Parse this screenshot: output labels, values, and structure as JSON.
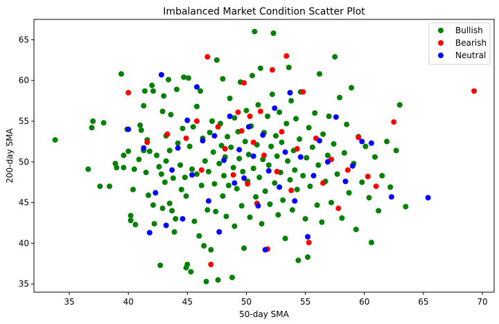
{
  "chart_data": {
    "type": "scatter",
    "title": "Imbalanced Market Condition Scatter Plot",
    "xlabel": "50-day SMA",
    "ylabel": "200-day SMA",
    "xlim": [
      32,
      71
    ],
    "ylim": [
      34,
      67.5
    ],
    "xticks": [
      35,
      40,
      45,
      50,
      55,
      60,
      65,
      70
    ],
    "yticks": [
      35,
      40,
      45,
      50,
      55,
      60,
      65
    ],
    "grid": false,
    "legend_position": "top-right",
    "series": [
      {
        "name": "Bullish",
        "color": "#008000",
        "points": [
          [
            33.8,
            52.7
          ],
          [
            36.6,
            49.1
          ],
          [
            36.9,
            54.2
          ],
          [
            37.0,
            55.0
          ],
          [
            37.6,
            47.0
          ],
          [
            37.9,
            54.8
          ],
          [
            38.4,
            47.0
          ],
          [
            38.9,
            49.8
          ],
          [
            39.0,
            49.3
          ],
          [
            39.4,
            60.8
          ],
          [
            39.6,
            50.8
          ],
          [
            39.6,
            49.3
          ],
          [
            39.9,
            54.0
          ],
          [
            40.0,
            51.3
          ],
          [
            40.2,
            42.8
          ],
          [
            40.2,
            43.4
          ],
          [
            40.4,
            46.6
          ],
          [
            40.5,
            49.1
          ],
          [
            40.6,
            42.3
          ],
          [
            40.9,
            50.3
          ],
          [
            41.0,
            54.5
          ],
          [
            41.1,
            53.9
          ],
          [
            41.3,
            51.4
          ],
          [
            41.3,
            56.9
          ],
          [
            41.4,
            58.7
          ],
          [
            41.5,
            48.7
          ],
          [
            41.6,
            52.7
          ],
          [
            41.7,
            45.9
          ],
          [
            41.8,
            51.3
          ],
          [
            42.0,
            59.4
          ],
          [
            42.1,
            58.7
          ],
          [
            42.1,
            44.7
          ],
          [
            42.2,
            42.4
          ],
          [
            42.4,
            50.8
          ],
          [
            42.6,
            49.4
          ],
          [
            42.7,
            37.3
          ],
          [
            42.8,
            48.5
          ],
          [
            42.9,
            44.3
          ],
          [
            42.9,
            56.2
          ],
          [
            43.0,
            58.1
          ],
          [
            43.1,
            47.5
          ],
          [
            43.2,
            50.1
          ],
          [
            43.2,
            53.2
          ],
          [
            43.4,
            60.1
          ],
          [
            43.5,
            44.9
          ],
          [
            43.5,
            51.4
          ],
          [
            43.6,
            55.8
          ],
          [
            43.7,
            44.0
          ],
          [
            43.8,
            48.0
          ],
          [
            43.9,
            41.4
          ],
          [
            44.0,
            43.0
          ],
          [
            44.1,
            58.9
          ],
          [
            44.2,
            52.3
          ],
          [
            44.4,
            49.6
          ],
          [
            44.5,
            46.6
          ],
          [
            44.6,
            54.1
          ],
          [
            44.7,
            60.4
          ],
          [
            44.8,
            48.1
          ],
          [
            44.9,
            45.8
          ],
          [
            44.9,
            37.0
          ],
          [
            45.0,
            37.4
          ],
          [
            45.1,
            60.3
          ],
          [
            45.2,
            51.9
          ],
          [
            45.3,
            36.5
          ],
          [
            45.4,
            49.1
          ],
          [
            45.5,
            54.3
          ],
          [
            45.6,
            42.7
          ],
          [
            45.8,
            48.5
          ],
          [
            45.8,
            56.8
          ],
          [
            46.0,
            40.9
          ],
          [
            46.1,
            58.7
          ],
          [
            46.2,
            47.1
          ],
          [
            46.3,
            52.9
          ],
          [
            46.4,
            39.7
          ],
          [
            46.5,
            50.1
          ],
          [
            46.6,
            35.3
          ],
          [
            46.7,
            44.1
          ],
          [
            46.8,
            48.8
          ],
          [
            46.9,
            53.6
          ],
          [
            47.0,
            39.2
          ],
          [
            47.1,
            55.0
          ],
          [
            47.2,
            51.2
          ],
          [
            47.3,
            47.3
          ],
          [
            47.4,
            43.9
          ],
          [
            47.5,
            62.5
          ],
          [
            47.6,
            35.5
          ],
          [
            47.7,
            49.8
          ],
          [
            47.8,
            54.7
          ],
          [
            47.9,
            52.0
          ],
          [
            48.0,
            45.8
          ],
          [
            48.0,
            60.2
          ],
          [
            48.1,
            48.3
          ],
          [
            48.2,
            50.6
          ],
          [
            48.3,
            43.3
          ],
          [
            48.4,
            53.1
          ],
          [
            48.5,
            47.1
          ],
          [
            48.6,
            57.8
          ],
          [
            48.7,
            51.8
          ],
          [
            48.8,
            35.8
          ],
          [
            48.9,
            49.3
          ],
          [
            49.0,
            42.1
          ],
          [
            49.0,
            55.4
          ],
          [
            49.2,
            46.7
          ],
          [
            49.3,
            53.7
          ],
          [
            49.4,
            50.4
          ],
          [
            49.5,
            59.8
          ],
          [
            49.6,
            44.6
          ],
          [
            49.7,
            48.8
          ],
          [
            49.8,
            39.4
          ],
          [
            49.9,
            52.5
          ],
          [
            50.0,
            56.3
          ],
          [
            50.1,
            47.6
          ],
          [
            50.2,
            50.9
          ],
          [
            50.3,
            43.2
          ],
          [
            50.4,
            54.4
          ],
          [
            50.5,
            60.6
          ],
          [
            50.6,
            49.2
          ],
          [
            50.7,
            66.0
          ],
          [
            50.8,
            45.7
          ],
          [
            50.9,
            52.1
          ],
          [
            51.0,
            57.0
          ],
          [
            51.1,
            48.1
          ],
          [
            51.2,
            61.5
          ],
          [
            51.3,
            42.4
          ],
          [
            51.4,
            50.3
          ],
          [
            51.5,
            53.6
          ],
          [
            51.6,
            46.4
          ],
          [
            51.8,
            55.6
          ],
          [
            51.9,
            49.6
          ],
          [
            52.0,
            44.8
          ],
          [
            52.1,
            51.9
          ],
          [
            52.2,
            58.3
          ],
          [
            52.3,
            65.8
          ],
          [
            52.4,
            47.4
          ],
          [
            52.5,
            53.2
          ],
          [
            52.6,
            50.7
          ],
          [
            52.7,
            43.5
          ],
          [
            52.8,
            56.1
          ],
          [
            52.9,
            48.7
          ],
          [
            53.0,
            52.4
          ],
          [
            53.1,
            45.3
          ],
          [
            53.3,
            40.6
          ],
          [
            53.4,
            54.7
          ],
          [
            53.5,
            50.1
          ],
          [
            53.6,
            61.6
          ],
          [
            53.7,
            47.8
          ],
          [
            53.8,
            57.5
          ],
          [
            53.9,
            44.1
          ],
          [
            54.0,
            51.4
          ],
          [
            54.1,
            49.0
          ],
          [
            54.2,
            55.3
          ],
          [
            54.3,
            46.6
          ],
          [
            54.4,
            37.9
          ],
          [
            54.5,
            52.8
          ],
          [
            54.6,
            58.6
          ],
          [
            54.8,
            48.3
          ],
          [
            55.0,
            43.0
          ],
          [
            55.1,
            50.5
          ],
          [
            55.2,
            38.3
          ],
          [
            55.3,
            54.2
          ],
          [
            55.4,
            47.0
          ],
          [
            55.6,
            51.8
          ],
          [
            55.8,
            56.0
          ],
          [
            56.0,
            44.7
          ],
          [
            56.1,
            49.6
          ],
          [
            56.2,
            60.8
          ],
          [
            56.4,
            42.6
          ],
          [
            56.5,
            53.4
          ],
          [
            56.7,
            47.6
          ],
          [
            56.9,
            50.8
          ],
          [
            57.0,
            55.6
          ],
          [
            57.2,
            45.0
          ],
          [
            57.4,
            52.2
          ],
          [
            57.5,
            62.9
          ],
          [
            57.7,
            48.5
          ],
          [
            57.9,
            57.9
          ],
          [
            58.1,
            43.1
          ],
          [
            58.3,
            51.1
          ],
          [
            58.5,
            54.6
          ],
          [
            58.7,
            46.2
          ],
          [
            58.9,
            59.1
          ],
          [
            59.1,
            49.8
          ],
          [
            59.3,
            41.7
          ],
          [
            59.5,
            53.1
          ],
          [
            59.8,
            47.5
          ],
          [
            60.1,
            51.9
          ],
          [
            60.4,
            45.6
          ],
          [
            60.6,
            40.1
          ],
          [
            60.9,
            50.6
          ],
          [
            61.2,
            44.0
          ],
          [
            61.5,
            48.3
          ],
          [
            61.9,
            52.5
          ],
          [
            62.2,
            46.9
          ],
          [
            62.7,
            51.4
          ],
          [
            63.0,
            57.0
          ],
          [
            63.5,
            44.5
          ]
        ]
      },
      {
        "name": "Bearish",
        "color": "#ff0000",
        "points": [
          [
            40.0,
            58.5
          ],
          [
            41.6,
            52.4
          ],
          [
            43.3,
            53.4
          ],
          [
            44.9,
            52.9
          ],
          [
            45.8,
            55.0
          ],
          [
            46.2,
            49.0
          ],
          [
            46.7,
            62.9
          ],
          [
            47.0,
            37.4
          ],
          [
            47.6,
            54.3
          ],
          [
            48.2,
            51.6
          ],
          [
            48.9,
            48.4
          ],
          [
            49.3,
            56.1
          ],
          [
            49.6,
            53.8
          ],
          [
            49.8,
            59.7
          ],
          [
            50.1,
            47.3
          ],
          [
            50.3,
            55.6
          ],
          [
            50.6,
            52.4
          ],
          [
            50.9,
            44.9
          ],
          [
            51.2,
            56.2
          ],
          [
            51.5,
            50.8
          ],
          [
            51.8,
            39.3
          ],
          [
            52.2,
            61.3
          ],
          [
            52.6,
            48.8
          ],
          [
            53.0,
            53.7
          ],
          [
            53.4,
            63.0
          ],
          [
            53.8,
            46.5
          ],
          [
            54.3,
            51.6
          ],
          [
            54.8,
            58.6
          ],
          [
            55.3,
            40.1
          ],
          [
            55.9,
            52.9
          ],
          [
            56.5,
            47.4
          ],
          [
            57.2,
            50.3
          ],
          [
            57.8,
            44.3
          ],
          [
            58.6,
            49.0
          ],
          [
            59.5,
            53.0
          ],
          [
            60.3,
            48.2
          ],
          [
            61.0,
            47.0
          ],
          [
            62.5,
            54.9
          ],
          [
            69.3,
            58.7
          ]
        ]
      },
      {
        "name": "Neutral",
        "color": "#0000ff",
        "points": [
          [
            40.0,
            54.0
          ],
          [
            41.3,
            51.7
          ],
          [
            41.8,
            41.3
          ],
          [
            42.3,
            46.2
          ],
          [
            42.8,
            60.7
          ],
          [
            43.2,
            42.2
          ],
          [
            43.7,
            49.0
          ],
          [
            44.2,
            51.7
          ],
          [
            44.6,
            43.0
          ],
          [
            45.0,
            55.1
          ],
          [
            45.4,
            48.4
          ],
          [
            45.8,
            59.2
          ],
          [
            46.3,
            52.6
          ],
          [
            46.8,
            45.2
          ],
          [
            47.3,
            53.2
          ],
          [
            47.7,
            41.4
          ],
          [
            48.1,
            50.2
          ],
          [
            48.6,
            55.6
          ],
          [
            49.0,
            47.4
          ],
          [
            49.4,
            51.5
          ],
          [
            49.8,
            48.0
          ],
          [
            50.2,
            54.3
          ],
          [
            50.6,
            50.7
          ],
          [
            51.0,
            44.6
          ],
          [
            51.4,
            53.3
          ],
          [
            51.6,
            39.2
          ],
          [
            51.9,
            48.9
          ],
          [
            52.4,
            56.6
          ],
          [
            52.8,
            46.9
          ],
          [
            53.3,
            51.2
          ],
          [
            53.7,
            58.5
          ],
          [
            54.1,
            45.2
          ],
          [
            54.6,
            50.6
          ],
          [
            55.2,
            40.8
          ],
          [
            55.7,
            48.3
          ],
          [
            56.2,
            52.6
          ],
          [
            56.9,
            50.0
          ],
          [
            57.6,
            55.5
          ],
          [
            58.4,
            47.6
          ],
          [
            59.0,
            49.5
          ],
          [
            59.8,
            52.5
          ],
          [
            60.6,
            52.3
          ],
          [
            62.3,
            45.7
          ],
          [
            65.4,
            45.6
          ]
        ]
      }
    ]
  }
}
